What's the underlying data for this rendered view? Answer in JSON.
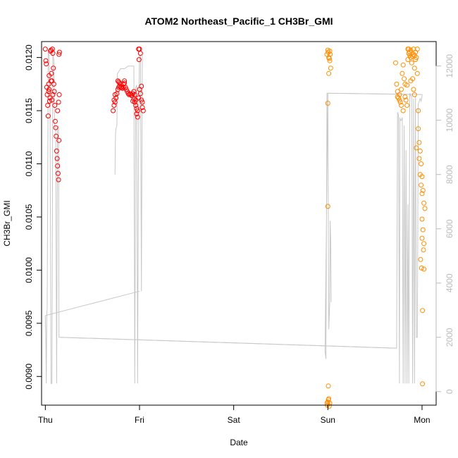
{
  "chart_data": {
    "type": "scatter",
    "title": "ATOM2 Northeast_Pacific_1 CH3Br_GMI",
    "xlabel": "Date",
    "ylabel": "CH3Br_GMI",
    "xlim": [
      -0.04,
      4.15
    ],
    "ylim": [
      0.00873,
      0.01215
    ],
    "x_ticks": [
      {
        "label": "Thu",
        "value": 0
      },
      {
        "label": "Fri",
        "value": 1
      },
      {
        "label": "Sat",
        "value": 2
      },
      {
        "label": "Sun",
        "value": 3
      },
      {
        "label": "Mon",
        "value": 4
      }
    ],
    "y_ticks": [
      0.009,
      0.0095,
      0.01,
      0.0105,
      0.011,
      0.0115,
      0.012
    ],
    "y_tick_labels": [
      "0.0090",
      "0.0095",
      "0.0100",
      "0.0105",
      "0.0110",
      "0.0115",
      "0.0120"
    ],
    "y2_ticks": [
      0,
      2000,
      4000,
      6000,
      8000,
      10000,
      12000
    ],
    "y2_tick_labels": [
      "0",
      "2000",
      "4000",
      "6000",
      "8000",
      "10000",
      "12000"
    ],
    "y2lim": [
      -500,
      12900
    ],
    "series": [
      {
        "color": "#ff0000",
        "points": [
          [
            0.0,
            0.01208
          ],
          [
            0.005,
            0.01197
          ],
          [
            0.01,
            0.01194
          ],
          [
            0.015,
            0.01172
          ],
          [
            0.02,
            0.01165
          ],
          [
            0.025,
            0.01155
          ],
          [
            0.03,
            0.01145
          ],
          [
            0.035,
            0.01168
          ],
          [
            0.04,
            0.0117
          ],
          [
            0.045,
            0.01159
          ],
          [
            0.05,
            0.01162
          ],
          [
            0.055,
            0.01206
          ],
          [
            0.06,
            0.01207
          ],
          [
            0.065,
            0.01185
          ],
          [
            0.07,
            0.01178
          ],
          [
            0.075,
            0.01208
          ],
          [
            0.08,
            0.01204
          ],
          [
            0.085,
            0.0119
          ],
          [
            0.09,
            0.01175
          ],
          [
            0.095,
            0.01168
          ],
          [
            0.1,
            0.01155
          ],
          [
            0.105,
            0.0114
          ],
          [
            0.11,
            0.01134
          ],
          [
            0.115,
            0.01126
          ],
          [
            0.12,
            0.01112
          ],
          [
            0.125,
            0.01105
          ],
          [
            0.13,
            0.01098
          ],
          [
            0.135,
            0.01091
          ],
          [
            0.14,
            0.01085
          ],
          [
            0.13,
            0.0115
          ],
          [
            0.14,
            0.01158
          ],
          [
            0.145,
            0.01203
          ],
          [
            0.15,
            0.01205
          ],
          [
            0.148,
            0.01165
          ],
          [
            0.145,
            0.01122
          ],
          [
            0.035,
            0.01175
          ],
          [
            0.04,
            0.01183
          ],
          [
            0.06,
            0.01178
          ],
          [
            0.07,
            0.0116
          ],
          [
            0.08,
            0.01165
          ],
          [
            0.72,
            0.0115
          ],
          [
            0.73,
            0.01155
          ],
          [
            0.74,
            0.01158
          ],
          [
            0.75,
            0.01162
          ],
          [
            0.76,
            0.01166
          ],
          [
            0.77,
            0.0117
          ],
          [
            0.78,
            0.01172
          ],
          [
            0.79,
            0.01173
          ],
          [
            0.8,
            0.01172
          ],
          [
            0.81,
            0.01172
          ],
          [
            0.82,
            0.01171
          ],
          [
            0.83,
            0.01172
          ],
          [
            0.84,
            0.01176
          ],
          [
            0.85,
            0.01172
          ],
          [
            0.86,
            0.0117
          ],
          [
            0.87,
            0.01168
          ],
          [
            0.88,
            0.01166
          ],
          [
            0.89,
            0.01165
          ],
          [
            0.9,
            0.01166
          ],
          [
            0.91,
            0.01165
          ],
          [
            0.92,
            0.01164
          ],
          [
            0.93,
            0.01166
          ],
          [
            0.94,
            0.01168
          ],
          [
            0.95,
            0.01165
          ],
          [
            0.96,
            0.0116
          ],
          [
            0.97,
            0.01152
          ],
          [
            0.98,
            0.0115
          ],
          [
            0.99,
            0.01162
          ],
          [
            1.0,
            0.0117
          ],
          [
            1.01,
            0.01166
          ],
          [
            1.02,
            0.0116
          ],
          [
            1.03,
            0.01158
          ],
          [
            0.73,
            0.0116
          ],
          [
            0.74,
            0.01165
          ],
          [
            0.77,
            0.01178
          ],
          [
            0.78,
            0.01177
          ],
          [
            0.79,
            0.01176
          ],
          [
            0.8,
            0.01175
          ],
          [
            0.83,
            0.01175
          ],
          [
            0.84,
            0.01178
          ],
          [
            0.93,
            0.01159
          ],
          [
            0.94,
            0.01161
          ],
          [
            0.95,
            0.01158
          ],
          [
            0.96,
            0.01155
          ],
          [
            0.97,
            0.01147
          ],
          [
            0.98,
            0.01144
          ],
          [
            0.99,
            0.01208
          ],
          [
            1.0,
            0.01208
          ],
          [
            1.01,
            0.01204
          ],
          [
            1.02,
            0.01173
          ],
          [
            1.03,
            0.01153
          ],
          [
            1.04,
            0.0115
          ],
          [
            0.995,
            0.01198
          ]
        ]
      },
      {
        "color": "#ff8c00",
        "points": [
          [
            2.99,
            0.01203
          ],
          [
            3.0,
            0.01207
          ],
          [
            3.005,
            0.01205
          ],
          [
            3.01,
            0.012
          ],
          [
            3.015,
            0.01199
          ],
          [
            3.02,
            0.01197
          ],
          [
            3.025,
            0.01203
          ],
          [
            3.03,
            0.0119
          ],
          [
            3.01,
            0.01185
          ],
          [
            3.02,
            0.01206
          ],
          [
            3.0,
            0.01157
          ],
          [
            3.0,
            0.0106
          ],
          [
            3.005,
            0.00891
          ],
          [
            2.99,
            0.00875
          ],
          [
            2.995,
            0.00873
          ],
          [
            3.0,
            0.00876
          ],
          [
            3.005,
            0.00878
          ],
          [
            3.01,
            0.00879
          ],
          [
            3.02,
            0.00875
          ],
          [
            3.015,
            0.00872
          ],
          [
            3.72,
            0.01195
          ],
          [
            3.73,
            0.01175
          ],
          [
            3.74,
            0.01168
          ],
          [
            3.75,
            0.01162
          ],
          [
            3.76,
            0.0116
          ],
          [
            3.77,
            0.01158
          ],
          [
            3.78,
            0.0117
          ],
          [
            3.79,
            0.01185
          ],
          [
            3.8,
            0.01193
          ],
          [
            3.81,
            0.0118
          ],
          [
            3.82,
            0.01175
          ],
          [
            3.83,
            0.0116
          ],
          [
            3.84,
            0.01155
          ],
          [
            3.85,
            0.01208
          ],
          [
            3.86,
            0.01204
          ],
          [
            3.87,
            0.01202
          ],
          [
            3.88,
            0.012
          ],
          [
            3.89,
            0.01195
          ],
          [
            3.9,
            0.0118
          ],
          [
            3.91,
            0.0117
          ],
          [
            3.92,
            0.0119
          ],
          [
            3.93,
            0.01205
          ],
          [
            3.94,
            0.012
          ],
          [
            3.95,
            0.01185
          ],
          [
            3.96,
            0.0115
          ],
          [
            3.97,
            0.0112
          ],
          [
            3.98,
            0.01112
          ],
          [
            3.99,
            0.011
          ],
          [
            4.0,
            0.01088
          ],
          [
            4.01,
            0.01075
          ],
          [
            4.02,
            0.01063
          ],
          [
            4.03,
            0.01058
          ],
          [
            4.0,
            0.01048
          ],
          [
            4.01,
            0.01038
          ],
          [
            4.02,
            0.01025
          ],
          [
            4.015,
            0.01019
          ],
          [
            3.985,
            0.0101
          ],
          [
            3.995,
            0.01002
          ],
          [
            4.005,
            0.00962
          ],
          [
            4.005,
            0.00893
          ],
          [
            3.74,
            0.01163
          ],
          [
            3.76,
            0.01165
          ],
          [
            3.78,
            0.01155
          ],
          [
            3.8,
            0.0115
          ],
          [
            3.82,
            0.01163
          ],
          [
            3.84,
            0.01174
          ],
          [
            3.86,
            0.01208
          ],
          [
            3.87,
            0.01205
          ],
          [
            3.88,
            0.01178
          ],
          [
            3.9,
            0.01201
          ],
          [
            3.91,
            0.01203
          ],
          [
            3.92,
            0.01165
          ],
          [
            3.93,
            0.01198
          ],
          [
            3.95,
            0.01208
          ],
          [
            3.94,
            0.01115
          ],
          [
            3.96,
            0.01133
          ],
          [
            3.97,
            0.01105
          ],
          [
            3.98,
            0.0109
          ],
          [
            3.99,
            0.0108
          ],
          [
            4.0,
            0.01072
          ],
          [
            4.0,
            0.0103
          ],
          [
            4.02,
            0.01001
          ],
          [
            3.91,
            0.01208
          ],
          [
            3.92,
            0.01202
          ],
          [
            3.88,
            0.01207
          ],
          [
            3.85,
            0.01198
          ]
        ]
      }
    ],
    "secondary_line": {
      "color": "#c8c8c8",
      "axis": "right",
      "points": [
        [
          0.0,
          2800
        ],
        [
          0.005,
          2100
        ],
        [
          0.01,
          300
        ],
        [
          0.015,
          2800
        ],
        [
          0.02,
          3100
        ],
        [
          0.03,
          12500
        ],
        [
          0.04,
          12400
        ],
        [
          0.05,
          10500
        ],
        [
          0.06,
          300
        ],
        [
          0.07,
          300
        ],
        [
          0.08,
          12500
        ],
        [
          0.09,
          12200
        ],
        [
          0.095,
          10500
        ],
        [
          0.1,
          9800
        ],
        [
          0.11,
          9700
        ],
        [
          0.12,
          300
        ],
        [
          0.13,
          9700
        ],
        [
          0.14,
          9800
        ],
        [
          0.145,
          2000
        ],
        [
          0.15,
          2000
        ],
        [
          0.16,
          2000
        ],
        [
          3.72,
          1600
        ],
        [
          3.73,
          1600
        ],
        [
          3.74,
          10300
        ],
        [
          3.75,
          10200
        ],
        [
          3.76,
          300
        ],
        [
          3.765,
          10100
        ],
        [
          3.77,
          10000
        ],
        [
          3.78,
          10000
        ],
        [
          3.79,
          10100
        ],
        [
          3.8,
          300
        ],
        [
          3.81,
          9800
        ],
        [
          3.82,
          300
        ],
        [
          3.83,
          8900
        ],
        [
          3.84,
          300
        ],
        [
          3.85,
          6900
        ],
        [
          3.86,
          300
        ],
        [
          3.87,
          11000
        ],
        [
          3.88,
          10900
        ],
        [
          3.89,
          10900
        ],
        [
          3.9,
          300
        ],
        [
          3.91,
          10800
        ],
        [
          3.92,
          300
        ],
        [
          3.93,
          10900
        ],
        [
          3.94,
          2000
        ],
        [
          3.95,
          2000
        ],
        [
          3.96,
          10600
        ],
        [
          3.97,
          10700
        ],
        [
          3.98,
          10800
        ],
        [
          3.99,
          10700
        ],
        [
          4.0,
          10900
        ],
        [
          4.0,
          10950
        ],
        [
          3.99,
          10950
        ],
        [
          3.0,
          11000
        ],
        [
          2.97,
          1500
        ],
        [
          2.98,
          1200
        ],
        [
          2.99,
          11000
        ],
        [
          3.0,
          11000
        ],
        [
          3.01,
          2300
        ],
        [
          3.02,
          3300
        ],
        [
          3.025,
          6300
        ],
        [
          3.03,
          5600
        ],
        [
          3.035,
          3300
        ]
      ],
      "extra_segments": [
        [
          [
            0.0,
            2800
          ],
          [
            1.0,
            3700
          ]
        ],
        [
          [
            0.16,
            2000
          ],
          [
            3.72,
            1600
          ]
        ],
        [
          [
            0.74,
            8000
          ],
          [
            0.745,
            9500
          ],
          [
            0.75,
            9700
          ],
          [
            0.76,
            9800
          ],
          [
            0.765,
            11700
          ],
          [
            0.78,
            11800
          ],
          [
            0.8,
            11900
          ],
          [
            0.82,
            11900
          ],
          [
            0.84,
            11900
          ],
          [
            0.86,
            11950
          ],
          [
            0.88,
            12000
          ],
          [
            0.9,
            12000
          ],
          [
            0.92,
            12000
          ],
          [
            0.94,
            12000
          ],
          [
            0.95,
            300
          ],
          [
            0.96,
            11200
          ],
          [
            0.97,
            11300
          ],
          [
            0.98,
            300
          ],
          [
            0.99,
            9500
          ],
          [
            1.0,
            12400
          ],
          [
            1.01,
            12400
          ],
          [
            1.02,
            3700
          ],
          [
            1.03,
            12400
          ]
        ],
        [
          [
            3.0,
            11000
          ],
          [
            3.99,
            10950
          ]
        ]
      ]
    }
  }
}
